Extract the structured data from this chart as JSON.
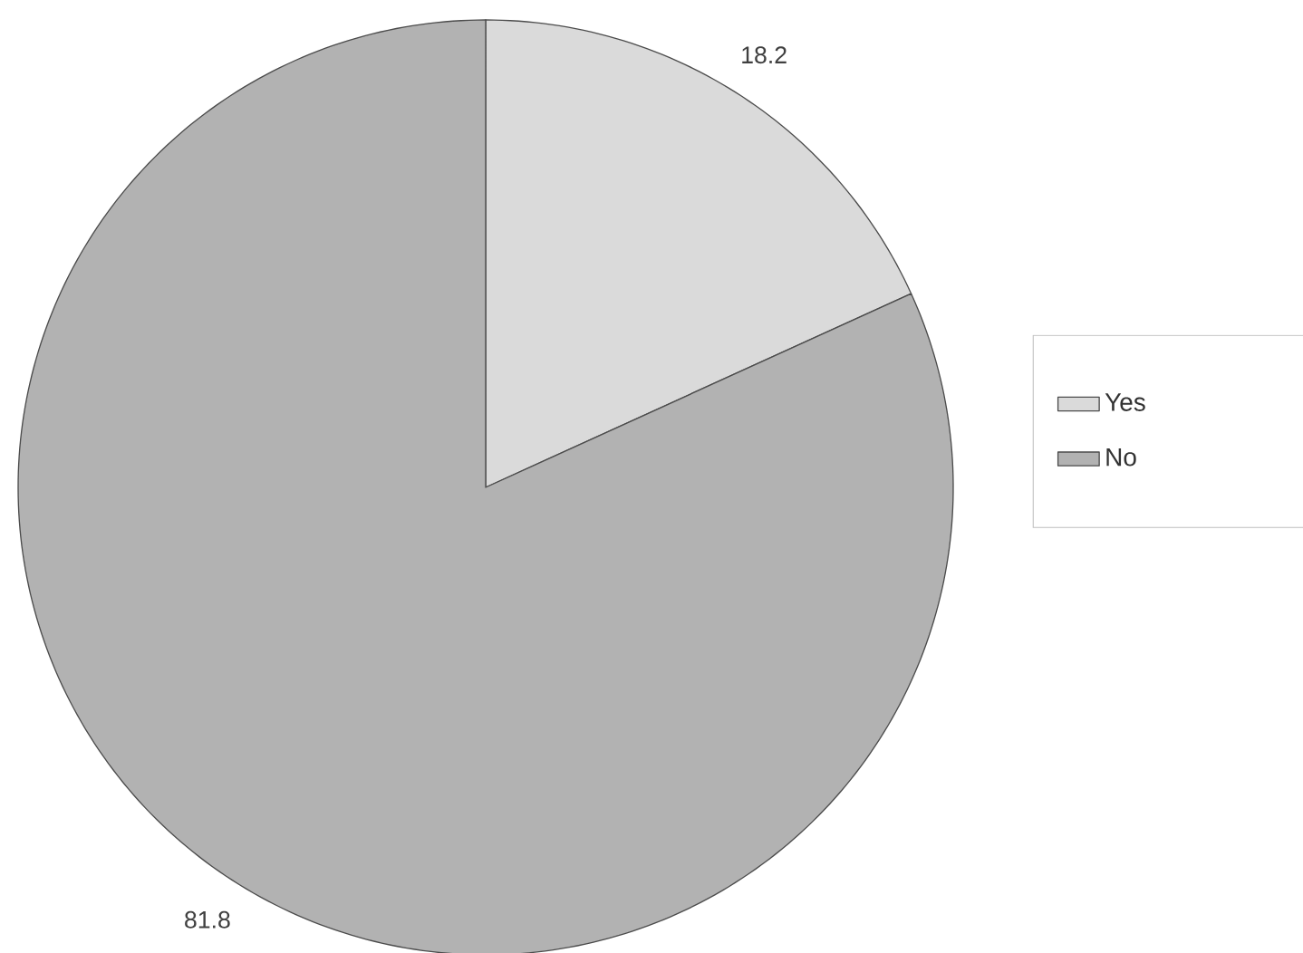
{
  "chart_data": {
    "type": "pie",
    "categories": [
      "Yes",
      "No"
    ],
    "values": [
      18.2,
      81.8
    ],
    "colors": [
      "#dadada",
      "#b2b2b2"
    ],
    "data_labels": true,
    "legend": "right"
  }
}
